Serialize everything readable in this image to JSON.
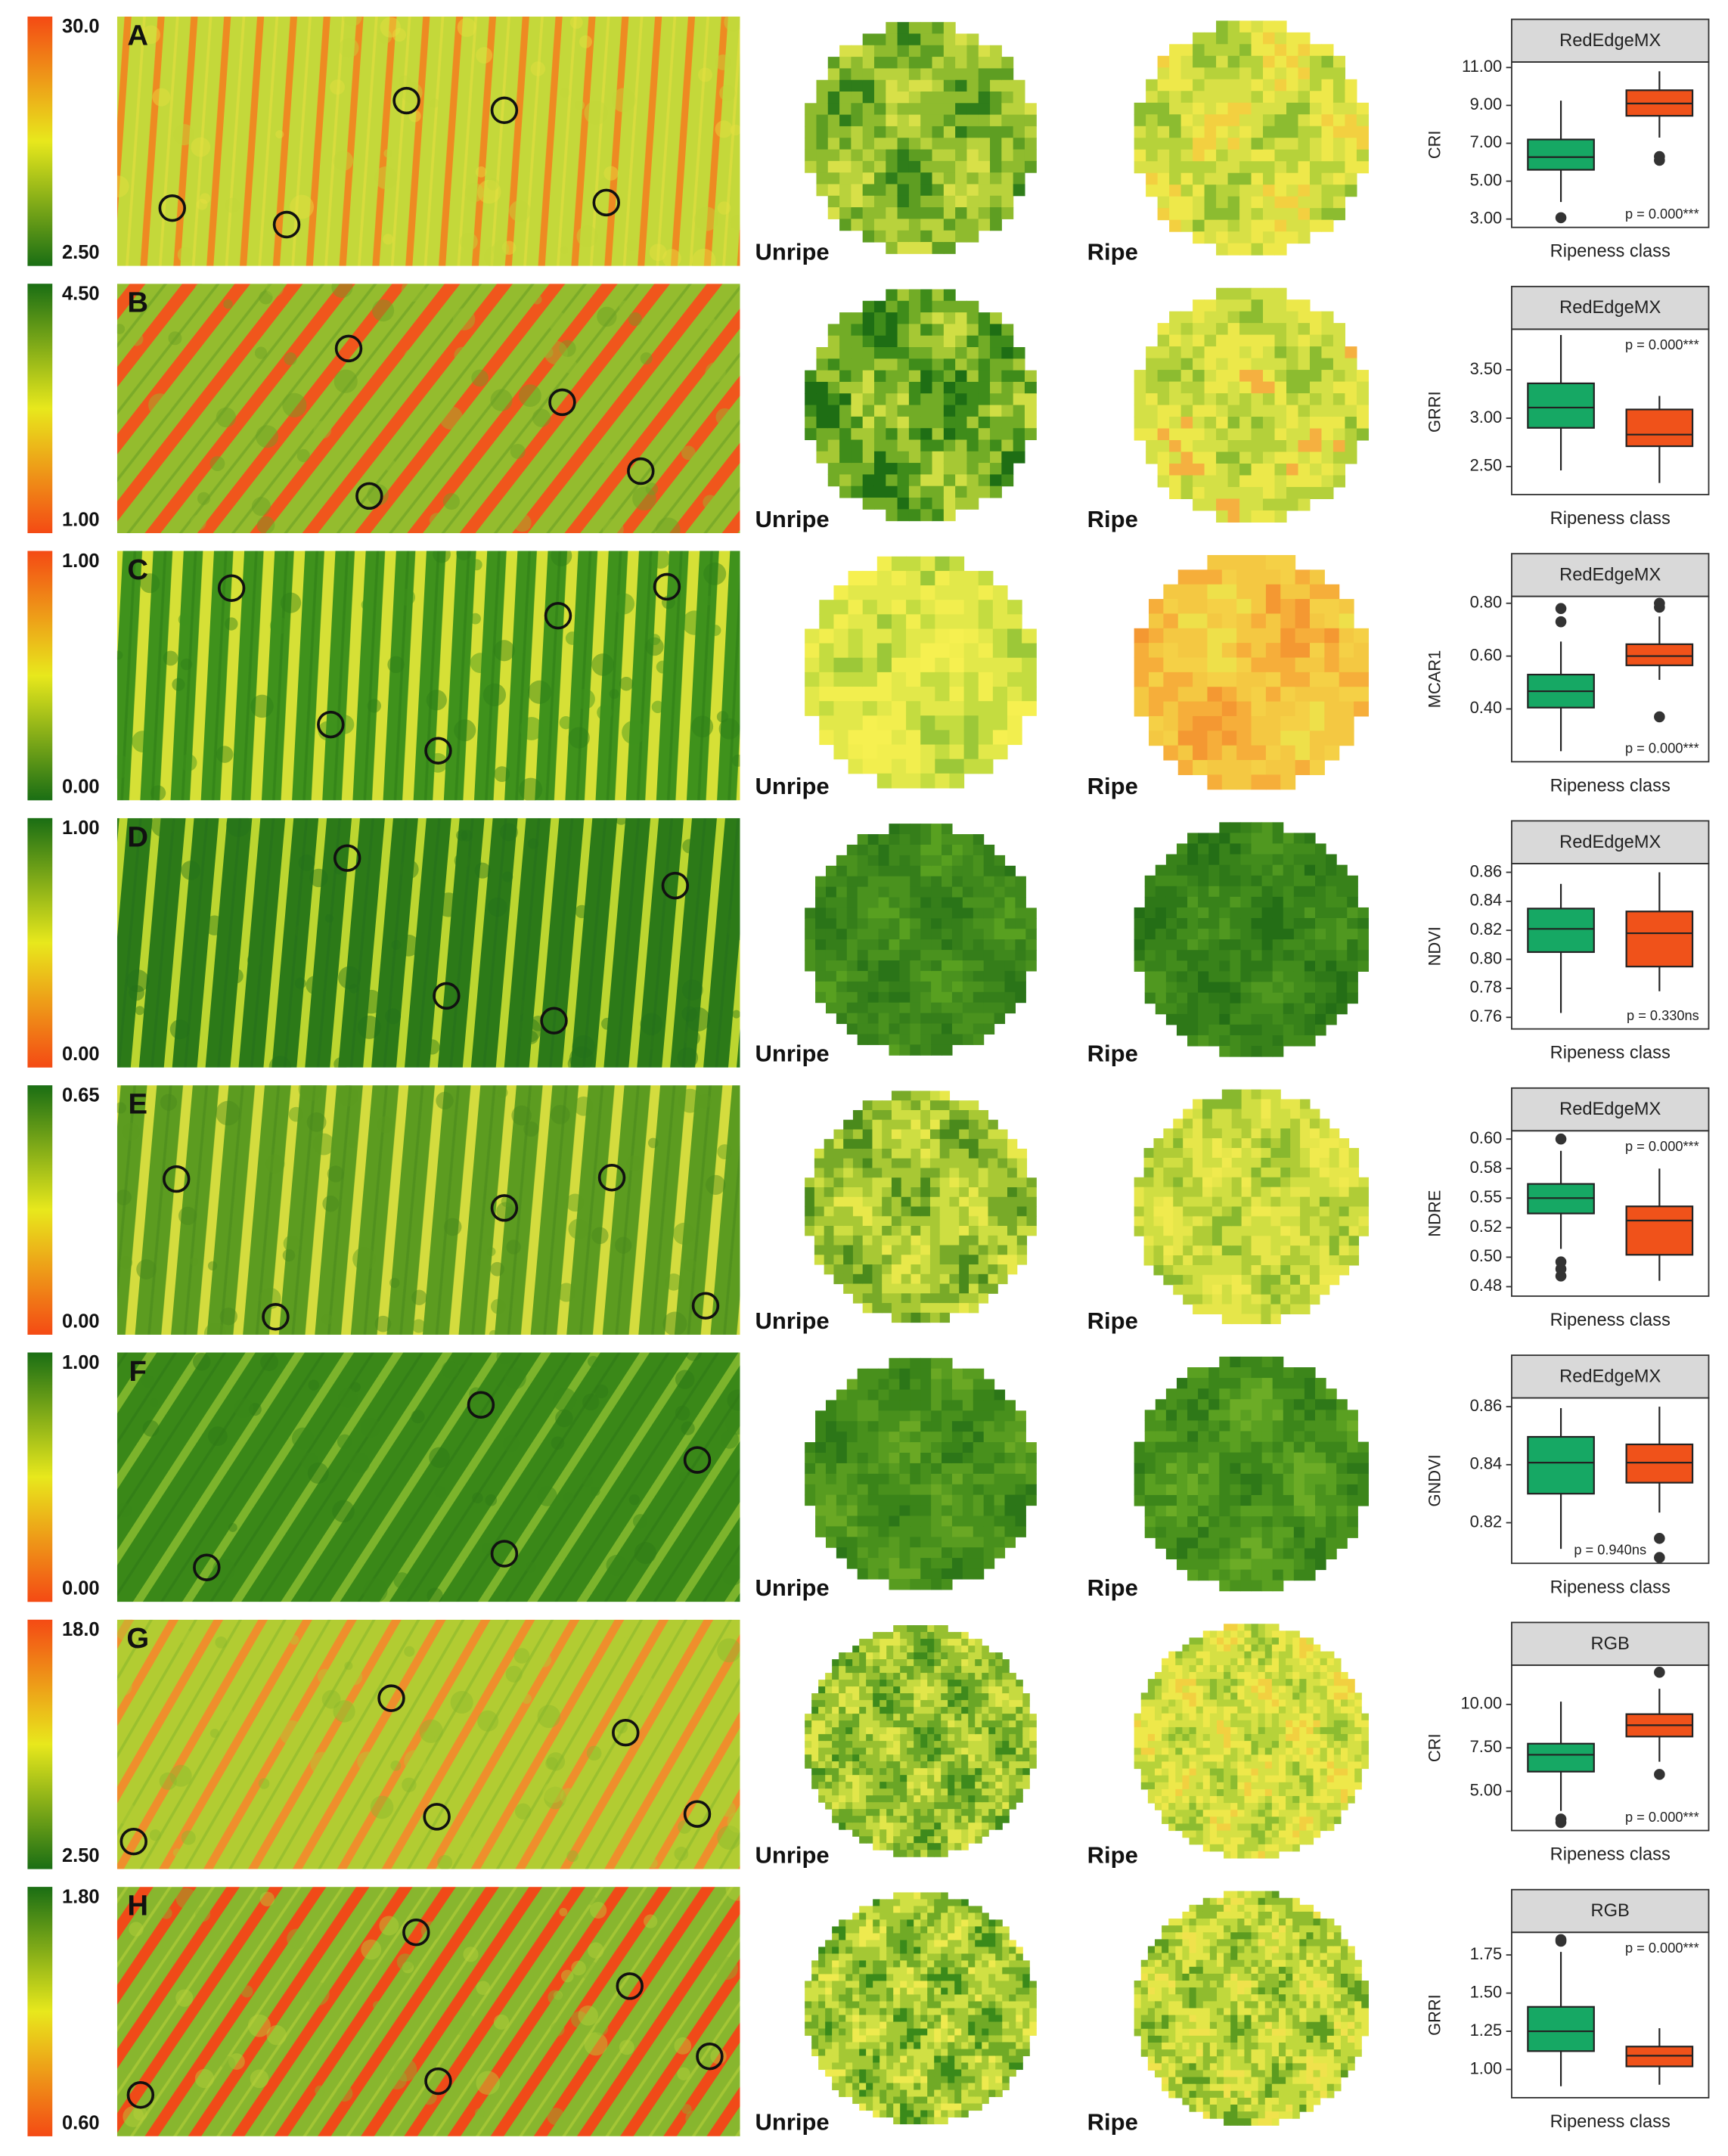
{
  "panels": [
    {
      "letter": "A",
      "colorbar": {
        "ticks": [
          {
            "value": 2.5,
            "label": "2.50"
          },
          {
            "value": 30,
            "label": "30.0"
          }
        ],
        "colors": [
          "#1a6e14",
          "#e8e81c",
          "#f44a14"
        ]
      },
      "unripe_label": "Unripe",
      "ripe_label": "Ripe"
    },
    {
      "letter": "B",
      "colorbar": {
        "ticks": [
          {
            "value": 1,
            "label": "1.00"
          },
          {
            "value": 4.5,
            "label": "4.50"
          }
        ],
        "colors": [
          "#f44a14",
          "#e8e81c",
          "#1a6e14"
        ]
      },
      "unripe_label": "Unripe",
      "ripe_label": "Ripe"
    },
    {
      "letter": "C",
      "colorbar": {
        "ticks": [
          {
            "value": 0,
            "label": "0.00"
          },
          {
            "value": 1,
            "label": "1.00"
          }
        ],
        "colors": [
          "#1a6e14",
          "#e8e81c",
          "#f44a14"
        ]
      },
      "unripe_label": "Unripe",
      "ripe_label": "Ripe"
    },
    {
      "letter": "D",
      "colorbar": {
        "ticks": [
          {
            "value": 0,
            "label": "0.00"
          },
          {
            "value": 1,
            "label": "1.00"
          }
        ],
        "colors": [
          "#f44a14",
          "#e8e81c",
          "#1a6e14"
        ]
      },
      "unripe_label": "Unripe",
      "ripe_label": "Ripe"
    },
    {
      "letter": "E",
      "colorbar": {
        "ticks": [
          {
            "value": 0,
            "label": "0.00"
          },
          {
            "value": 0.65,
            "label": "0.65"
          }
        ],
        "colors": [
          "#f44a14",
          "#e8e81c",
          "#1a6e14"
        ]
      },
      "unripe_label": "Unripe",
      "ripe_label": "Ripe"
    },
    {
      "letter": "F",
      "colorbar": {
        "ticks": [
          {
            "value": 0,
            "label": "0.00"
          },
          {
            "value": 1,
            "label": "1.00"
          }
        ],
        "colors": [
          "#f44a14",
          "#e8e81c",
          "#1a6e14"
        ]
      },
      "unripe_label": "Unripe",
      "ripe_label": "Ripe"
    },
    {
      "letter": "G",
      "colorbar": {
        "ticks": [
          {
            "value": 2.5,
            "label": "2.50"
          },
          {
            "value": 18,
            "label": "18.0"
          }
        ],
        "colors": [
          "#1a6e14",
          "#e8e81c",
          "#f44a14"
        ]
      },
      "unripe_label": "Unripe",
      "ripe_label": "Ripe"
    },
    {
      "letter": "H",
      "colorbar": {
        "ticks": [
          {
            "value": 0.6,
            "label": "0.60"
          },
          {
            "value": 1.8,
            "label": "1.80"
          }
        ],
        "colors": [
          "#f44a14",
          "#e8e81c",
          "#1a6e14"
        ]
      },
      "unripe_label": "Unripe",
      "ripe_label": "Ripe"
    }
  ],
  "chart_data": [
    {
      "type": "box",
      "facet": "RedEdgeMX",
      "y_label": "CRI",
      "x_label": "Ripeness class",
      "categories": [
        null,
        null
      ],
      "boxes": [
        {
          "color": "#16a864",
          "whislo": 3.9,
          "q1": 5.6,
          "med": 6.27,
          "q3": 7.2,
          "whishi": 9.25,
          "fliers": [
            3.07
          ]
        },
        {
          "color": "#f0521a",
          "whislo": 7.3,
          "q1": 8.45,
          "med": 9.1,
          "q3": 9.8,
          "whishi": 10.8,
          "fliers": [
            6.1,
            6.3
          ]
        }
      ],
      "ylim": [
        2.56,
        11.29
      ],
      "yticks": [
        {
          "value": 3,
          "label": "3.00"
        },
        {
          "value": 5,
          "label": "5.00"
        },
        {
          "value": 7,
          "label": "7.00"
        },
        {
          "value": 9,
          "label": "9.00"
        },
        {
          "value": 11,
          "label": "11.00"
        }
      ],
      "annotation": "p = 0.000***",
      "annotation_corner": "bottom-right"
    },
    {
      "type": "box",
      "facet": "RedEdgeMX",
      "y_label": "GRRI",
      "x_label": "Ripeness class",
      "categories": [
        null,
        null
      ],
      "boxes": [
        {
          "color": "#16a864",
          "whislo": 2.46,
          "q1": 2.9,
          "med": 3.11,
          "q3": 3.36,
          "whishi": 3.86,
          "fliers": []
        },
        {
          "color": "#f0521a",
          "whislo": 2.33,
          "q1": 2.71,
          "med": 2.83,
          "q3": 3.09,
          "whishi": 3.23,
          "fliers": []
        }
      ],
      "ylim": [
        2.21,
        3.92
      ],
      "yticks": [
        {
          "value": 2.5,
          "label": "2.50"
        },
        {
          "value": 3,
          "label": "3.00"
        },
        {
          "value": 3.5,
          "label": "3.50"
        }
      ],
      "annotation": "p = 0.000***",
      "annotation_corner": "top-right"
    },
    {
      "type": "box",
      "facet": "RedEdgeMX",
      "y_label": "MCAR1",
      "x_label": "Ripeness class",
      "categories": [
        null,
        null
      ],
      "boxes": [
        {
          "color": "#16a864",
          "whislo": 0.24,
          "q1": 0.405,
          "med": 0.467,
          "q3": 0.53,
          "whishi": 0.655,
          "fliers": [
            0.73,
            0.78
          ]
        },
        {
          "color": "#f0521a",
          "whislo": 0.51,
          "q1": 0.565,
          "med": 0.6,
          "q3": 0.645,
          "whishi": 0.75,
          "fliers": [
            0.37,
            0.785,
            0.8
          ]
        }
      ],
      "ylim": [
        0.2,
        0.826
      ],
      "yticks": [
        {
          "value": 0.4,
          "label": "0.40"
        },
        {
          "value": 0.6,
          "label": "0.60"
        },
        {
          "value": 0.8,
          "label": "0.80"
        }
      ],
      "annotation": "p = 0.000***",
      "annotation_corner": "bottom-right"
    },
    {
      "type": "box",
      "facet": "RedEdgeMX",
      "y_label": "NDVI",
      "x_label": "Ripeness class",
      "categories": [
        null,
        null
      ],
      "boxes": [
        {
          "color": "#16a864",
          "whislo": 0.763,
          "q1": 0.805,
          "med": 0.821,
          "q3": 0.835,
          "whishi": 0.852,
          "fliers": []
        },
        {
          "color": "#f0521a",
          "whislo": 0.778,
          "q1": 0.795,
          "med": 0.818,
          "q3": 0.833,
          "whishi": 0.86,
          "fliers": []
        }
      ],
      "ylim": [
        0.752,
        0.866
      ],
      "yticks": [
        {
          "value": 0.76,
          "label": "0.76"
        },
        {
          "value": 0.78,
          "label": "0.78"
        },
        {
          "value": 0.8,
          "label": "0.80"
        },
        {
          "value": 0.82,
          "label": "0.82"
        },
        {
          "value": 0.84,
          "label": "0.84"
        },
        {
          "value": 0.86,
          "label": "0.86"
        }
      ],
      "annotation": "p = 0.330ns",
      "annotation_corner": "bottom-right"
    },
    {
      "type": "box",
      "facet": "RedEdgeMX",
      "y_label": "NDRE",
      "x_label": "Ripeness class",
      "categories": [
        null,
        null
      ],
      "boxes": [
        {
          "color": "#16a864",
          "whislo": 0.507,
          "q1": 0.537,
          "med": 0.55,
          "q3": 0.562,
          "whishi": 0.59,
          "fliers": [
            0.484,
            0.49,
            0.496,
            0.6
          ]
        },
        {
          "color": "#f0521a",
          "whislo": 0.48,
          "q1": 0.502,
          "med": 0.531,
          "q3": 0.543,
          "whishi": 0.575,
          "fliers": []
        }
      ],
      "ylim": [
        0.467,
        0.607
      ],
      "yticks": [
        {
          "value": 0.475,
          "label": "0.48"
        },
        {
          "value": 0.5,
          "label": "0.50"
        },
        {
          "value": 0.525,
          "label": "0.52"
        },
        {
          "value": 0.55,
          "label": "0.55"
        },
        {
          "value": 0.575,
          "label": "0.58"
        },
        {
          "value": 0.6,
          "label": "0.60"
        }
      ],
      "annotation": "p = 0.000***",
      "annotation_corner": "top-right"
    },
    {
      "type": "box",
      "facet": "RedEdgeMX",
      "y_label": "GNDVI",
      "x_label": "Ripeness class",
      "categories": [
        null,
        null
      ],
      "boxes": [
        {
          "color": "#16a864",
          "whislo": 0.811,
          "q1": 0.83,
          "med": 0.8407,
          "q3": 0.8496,
          "whishi": 0.8595,
          "fliers": []
        },
        {
          "color": "#f0521a",
          "whislo": 0.8235,
          "q1": 0.8338,
          "med": 0.8407,
          "q3": 0.847,
          "whishi": 0.86,
          "fliers": [
            0.808,
            0.8146
          ]
        }
      ],
      "ylim": [
        0.806,
        0.863
      ],
      "yticks": [
        {
          "value": 0.82,
          "label": "0.82"
        },
        {
          "value": 0.84,
          "label": "0.84"
        },
        {
          "value": 0.86,
          "label": "0.86"
        }
      ],
      "annotation": "p = 0.940ns",
      "annotation_corner": "bottom"
    },
    {
      "type": "box",
      "facet": "RGB",
      "y_label": "CRI",
      "x_label": "Ripeness class",
      "categories": [
        null,
        null
      ],
      "boxes": [
        {
          "color": "#16a864",
          "whislo": 3.87,
          "q1": 6.13,
          "med": 7.1,
          "q3": 7.74,
          "whishi": 10.16,
          "fliers": [
            3.2,
            3.4
          ]
        },
        {
          "color": "#f0521a",
          "whislo": 6.7,
          "q1": 8.15,
          "med": 8.8,
          "q3": 9.44,
          "whishi": 10.9,
          "fliers": [
            5.97,
            11.85
          ]
        }
      ],
      "ylim": [
        2.74,
        12.26
      ],
      "yticks": [
        {
          "value": 5,
          "label": "5.00"
        },
        {
          "value": 7.5,
          "label": "7.50"
        },
        {
          "value": 10,
          "label": "10.00"
        }
      ],
      "annotation": "p = 0.000***",
      "annotation_corner": "bottom-right"
    },
    {
      "type": "box",
      "facet": "RGB",
      "y_label": "GRRI",
      "x_label": "Ripeness class",
      "categories": [
        null,
        null
      ],
      "boxes": [
        {
          "color": "#16a864",
          "whislo": 0.89,
          "q1": 1.12,
          "med": 1.25,
          "q3": 1.41,
          "whishi": 1.77,
          "fliers": [
            1.84,
            1.85
          ]
        },
        {
          "color": "#f0521a",
          "whislo": 0.9,
          "q1": 1.02,
          "med": 1.09,
          "q3": 1.15,
          "whishi": 1.27,
          "fliers": []
        }
      ],
      "ylim": [
        0.815,
        1.898
      ],
      "yticks": [
        {
          "value": 1,
          "label": "1.00"
        },
        {
          "value": 1.25,
          "label": "1.25"
        },
        {
          "value": 1.5,
          "label": "1.50"
        },
        {
          "value": 1.75,
          "label": "1.75"
        }
      ],
      "annotation": "p = 0.000***",
      "annotation_corner": "top-right"
    }
  ]
}
